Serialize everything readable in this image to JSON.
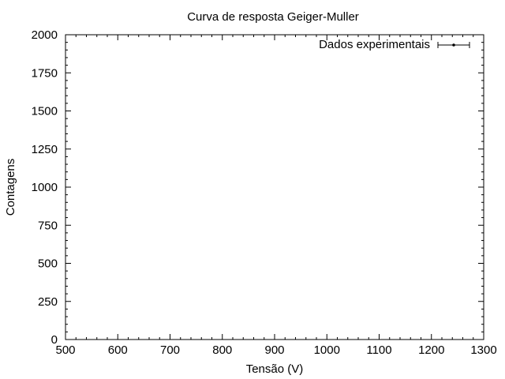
{
  "chart_data": {
    "type": "scatter",
    "title": "Curva de resposta Geiger-Muller",
    "xlabel": "Tensão (V)",
    "ylabel": "Contagens",
    "xlim": [
      500,
      1300
    ],
    "ylim": [
      0,
      2000
    ],
    "x_ticks": [
      500,
      600,
      700,
      800,
      900,
      1000,
      1100,
      1200,
      1300
    ],
    "y_ticks": [
      0,
      250,
      500,
      750,
      1000,
      1250,
      1500,
      1750,
      2000
    ],
    "x_minor_step": 20,
    "y_minor_step": 50,
    "grid": false,
    "legend_position": "top-right",
    "series": [
      {
        "name": "Dados experimentais",
        "marker": "point-with-xerrorbar",
        "color": "#000000",
        "points": []
      }
    ]
  }
}
